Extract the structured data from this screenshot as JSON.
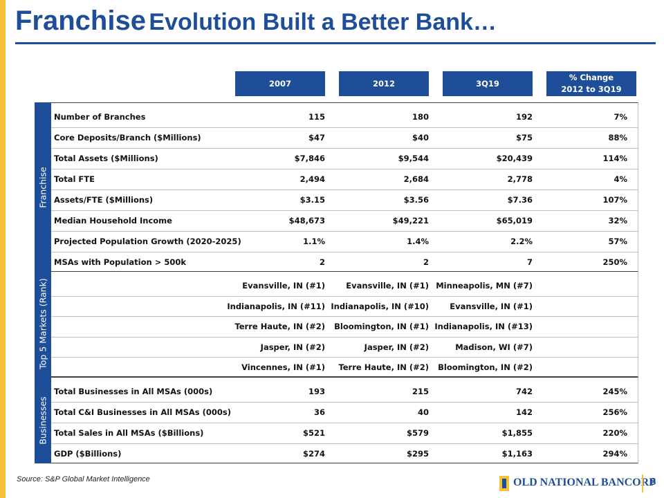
{
  "header": {
    "title_lead": "Franchise",
    "title_rest": "Evolution Built a Better Bank…"
  },
  "table": {
    "columns": [
      "2007",
      "2012",
      "3Q19",
      "% Change\n2012 to 3Q19"
    ],
    "sections": [
      {
        "label": "Franchise",
        "rows": [
          {
            "label": "Number of Branches",
            "cells": [
              "115",
              "180",
              "192",
              "7%"
            ]
          },
          {
            "label": "Core Deposits/Branch ($Millions)",
            "cells": [
              "$47",
              "$40",
              "$75",
              "88%"
            ]
          },
          {
            "label": "Total Assets ($Millions)",
            "cells": [
              "$7,846",
              "$9,544",
              "$20,439",
              "114%"
            ]
          },
          {
            "label": "Total FTE",
            "cells": [
              "2,494",
              "2,684",
              "2,778",
              "4%"
            ]
          },
          {
            "label": "Assets/FTE ($Millions)",
            "cells": [
              "$3.15",
              "$3.56",
              "$7.36",
              "107%"
            ]
          },
          {
            "label": "Median Household Income",
            "cells": [
              "$48,673",
              "$49,221",
              "$65,019",
              "32%"
            ]
          },
          {
            "label": "Projected Population Growth (2020-2025)",
            "cells": [
              "1.1%",
              "1.4%",
              "2.2%",
              "57%"
            ]
          },
          {
            "label": "MSAs with Population > 500k",
            "cells": [
              "2",
              "2",
              "7",
              "250%"
            ]
          }
        ]
      },
      {
        "label": "Top 5 Markets (Rank)",
        "rows": [
          {
            "cells": [
              "Evansville, IN (#1)",
              "Evansville, IN (#1)",
              "Minneapolis, MN (#7)"
            ]
          },
          {
            "cells": [
              "Indianapolis, IN (#11)",
              "Indianapolis, IN (#10)",
              "Evansville, IN (#1)"
            ]
          },
          {
            "cells": [
              "Terre Haute, IN (#2)",
              "Bloomington, IN (#1)",
              "Indianapolis, IN (#13)"
            ]
          },
          {
            "cells": [
              "Jasper, IN (#2)",
              "Jasper, IN (#2)",
              "Madison, WI (#7)"
            ]
          },
          {
            "cells": [
              "Vincennes, IN (#1)",
              "Terre Haute, IN (#2)",
              "Bloomington, IN (#2)"
            ]
          }
        ]
      },
      {
        "label": "Businesses",
        "rows": [
          {
            "label": "Total Businesses in All MSAs (000s)",
            "cells": [
              "193",
              "215",
              "742",
              "245%"
            ]
          },
          {
            "label": "Total C&I Businesses in All MSAs (000s)",
            "cells": [
              "36",
              "40",
              "142",
              "256%"
            ]
          },
          {
            "label": "Total Sales in All MSAs ($Billions)",
            "cells": [
              "$521",
              "$579",
              "$1,855",
              "220%"
            ]
          },
          {
            "label": "GDP ($Billions)",
            "cells": [
              "$274",
              "$295",
              "$1,163",
              "294%"
            ]
          }
        ]
      }
    ]
  },
  "footer": {
    "source": "Source: S&P Global Market Intelligence",
    "logo": "OLD NATIONAL BANCORP",
    "page": "8"
  }
}
